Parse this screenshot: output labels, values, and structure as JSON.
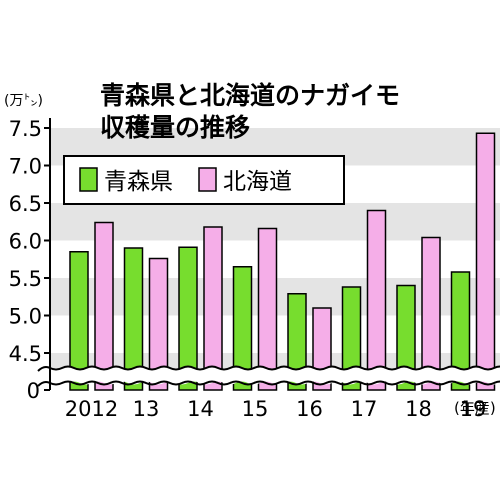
{
  "chart_data": {
    "type": "bar",
    "title_lines": [
      "青森県と北海道のナガイモ",
      "収穫量の推移"
    ],
    "ylabel": "(万㌧)",
    "xlabel": "(年産)",
    "categories": [
      "2012",
      "13",
      "14",
      "15",
      "16",
      "17",
      "18",
      "19"
    ],
    "series": [
      {
        "name": "青森県",
        "color": "#77dd2e",
        "values": [
          5.85,
          5.9,
          5.91,
          5.65,
          5.29,
          5.38,
          5.4,
          5.58
        ]
      },
      {
        "name": "北海道",
        "color": "#f5aee8",
        "values": [
          6.24,
          5.76,
          6.18,
          6.16,
          5.1,
          6.4,
          6.04,
          7.43
        ]
      }
    ],
    "yticks": [
      "7.5",
      "7.0",
      "6.5",
      "6.0",
      "5.5",
      "5.0",
      "4.5",
      "0"
    ],
    "ylim": [
      4.5,
      7.5
    ],
    "axis_break": true,
    "grid": "alternating-bands",
    "legend_position": "top-left"
  }
}
